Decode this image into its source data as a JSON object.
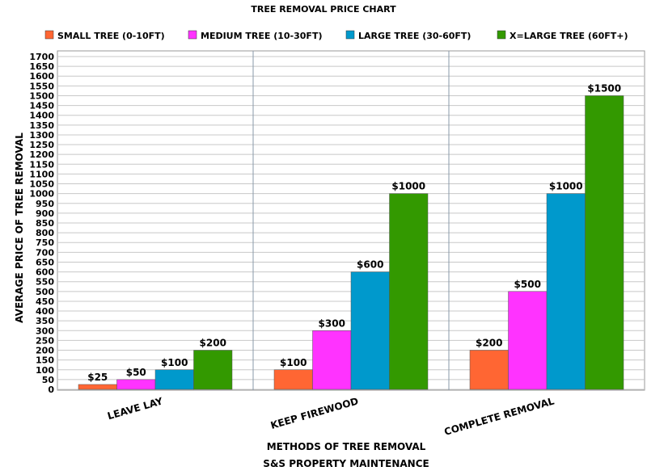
{
  "chart_data": {
    "type": "bar",
    "title": "TREE REMOVAL PRICE CHART",
    "xlabel": "METHODS OF TREE REMOVAL",
    "subtitle_bottom": "S&S PROPERTY MAINTENANCE",
    "ylabel": "AVERAGE PRICE OF TREE REMOVAL",
    "ylim": [
      0,
      1700
    ],
    "ytick_step": 50,
    "grid": true,
    "legend_position": "top",
    "categories": [
      "LEAVE LAY",
      "KEEP FIREWOOD",
      "COMPLETE REMOVAL"
    ],
    "series": [
      {
        "name": "SMALL TREE (0-10FT)",
        "color": "#ff6633",
        "values": [
          25,
          100,
          200
        ],
        "labels": [
          "$25",
          "$100",
          "$200"
        ]
      },
      {
        "name": "MEDIUM TREE (10-30FT)",
        "color": "#ff33ff",
        "values": [
          50,
          300,
          500
        ],
        "labels": [
          "$50",
          "$300",
          "$500"
        ]
      },
      {
        "name": "LARGE TREE (30-60FT)",
        "color": "#0099cc",
        "values": [
          100,
          600,
          1000
        ],
        "labels": [
          "$100",
          "$600",
          "$1000"
        ]
      },
      {
        "name": "X=LARGE TREE (60FT+)",
        "color": "#339900",
        "values": [
          200,
          1000,
          1500
        ],
        "labels": [
          "$200",
          "$1000",
          "$1500"
        ]
      }
    ]
  }
}
